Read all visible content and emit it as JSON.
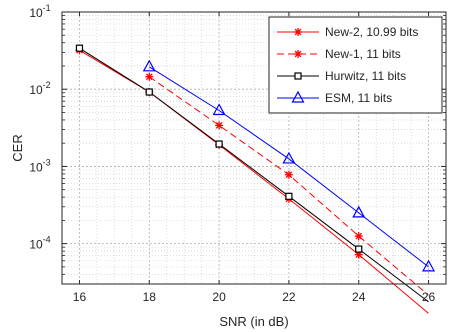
{
  "chart_data": {
    "type": "line",
    "title": "",
    "xlabel": "SNR (in dB)",
    "ylabel": "CER",
    "xlim": [
      15.5,
      26.5
    ],
    "ylim": [
      3e-05,
      0.1
    ],
    "yscale": "log",
    "grid": true,
    "minor_grid": true,
    "legend_position": "top-right",
    "x_ticks": [
      16,
      18,
      20,
      22,
      24,
      26
    ],
    "y_ticks": [
      {
        "value": 0.0001,
        "base": "10",
        "exp": "-4"
      },
      {
        "value": 0.001,
        "base": "10",
        "exp": "-3"
      },
      {
        "value": 0.01,
        "base": "10",
        "exp": "-2"
      },
      {
        "value": 0.1,
        "base": "10",
        "exp": "-1"
      }
    ],
    "series": [
      {
        "name": "New-2, 10.99 bits",
        "color": "#ff0000",
        "line_style": "solid",
        "marker": "asterisk",
        "points": [
          [
            16,
            0.032
          ],
          [
            18,
            0.0092
          ],
          [
            20,
            0.0019
          ],
          [
            22,
            0.00038
          ],
          [
            24,
            7.2e-05
          ]
        ],
        "line_extension": [
          [
            26,
            1.25e-05
          ]
        ]
      },
      {
        "name": "New-1, 11 bits",
        "color": "#ff0000",
        "line_style": "dashed",
        "marker": "asterisk",
        "points": [
          [
            18,
            0.0145
          ],
          [
            20,
            0.0034
          ],
          [
            22,
            0.00078
          ],
          [
            24,
            0.000125
          ]
        ],
        "line_extension": [
          [
            26,
            2.15e-05
          ]
        ]
      },
      {
        "name": "Hurwitz, 11 bits",
        "color": "#000000",
        "line_style": "solid",
        "marker": "square",
        "points": [
          [
            16,
            0.034
          ],
          [
            18,
            0.0092
          ],
          [
            20,
            0.00195
          ],
          [
            22,
            0.00041
          ],
          [
            24,
            8.5e-05
          ]
        ],
        "line_extension": [
          [
            26,
            1.76e-05
          ]
        ]
      },
      {
        "name": "ESM, 11 bits",
        "color": "#0000ff",
        "line_style": "solid",
        "marker": "triangle",
        "points": [
          [
            18,
            0.0195
          ],
          [
            20,
            0.0053
          ],
          [
            22,
            0.00125
          ],
          [
            24,
            0.00025
          ],
          [
            26,
            5e-05
          ]
        ]
      }
    ]
  }
}
